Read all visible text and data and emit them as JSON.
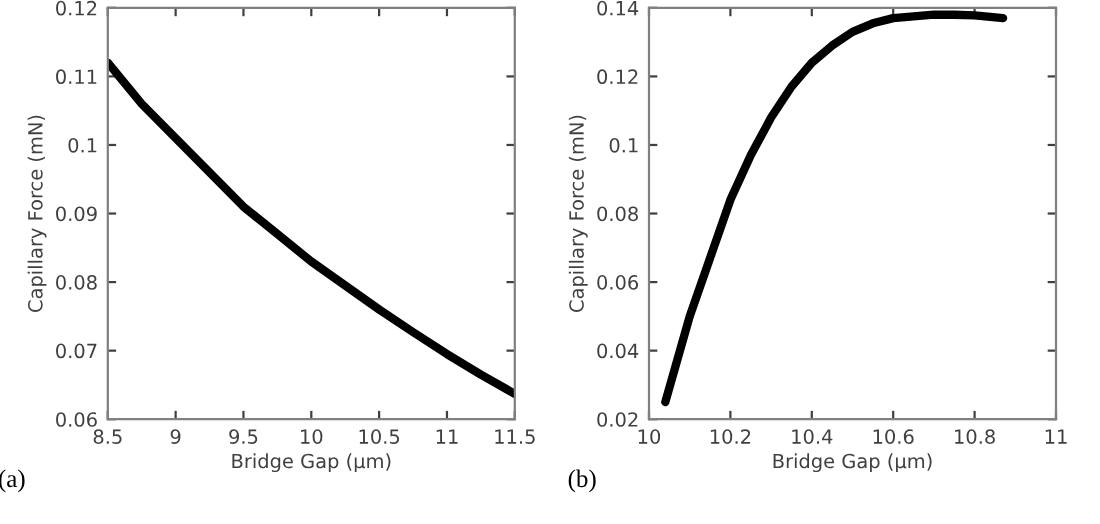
{
  "chart_data": [
    {
      "type": "line",
      "xlabel": "Bridge Gap (μm)",
      "ylabel": "Capillary Force (mN)",
      "annotations": [
        "(a)"
      ],
      "xlim": [
        8.5,
        11.5
      ],
      "xticks": [
        8.5,
        9,
        9.5,
        10,
        10.5,
        11,
        11.5
      ],
      "ylim": [
        0.06,
        0.12
      ],
      "yticks": [
        0.06,
        0.07,
        0.08,
        0.09,
        0.1,
        0.11,
        0.12
      ],
      "grid": false,
      "legend": false,
      "series": [
        {
          "color": "#000000",
          "x": [
            8.5,
            8.75,
            9,
            9.25,
            9.5,
            9.75,
            10,
            10.25,
            10.5,
            10.75,
            11,
            11.25,
            11.5
          ],
          "values": [
            0.112,
            0.106,
            0.101,
            0.096,
            0.091,
            0.087,
            0.083,
            0.0795,
            0.076,
            0.0727,
            0.0695,
            0.0665,
            0.0637
          ]
        }
      ]
    },
    {
      "type": "line",
      "xlabel": "Bridge Gap (μm)",
      "ylabel": "Capillary Force (mN)",
      "annotations": [
        "(b)"
      ],
      "xlim": [
        10,
        11
      ],
      "xticks": [
        10,
        10.2,
        10.4,
        10.6,
        10.8,
        11
      ],
      "ylim": [
        0.02,
        0.14
      ],
      "yticks": [
        0.02,
        0.04,
        0.06,
        0.08,
        0.1,
        0.12,
        0.14
      ],
      "grid": false,
      "legend": false,
      "series": [
        {
          "color": "#000000",
          "x": [
            10.04,
            10.1,
            10.15,
            10.2,
            10.25,
            10.3,
            10.35,
            10.4,
            10.45,
            10.5,
            10.55,
            10.6,
            10.65,
            10.7,
            10.75,
            10.8,
            10.87
          ],
          "values": [
            0.025,
            0.05,
            0.067,
            0.084,
            0.097,
            0.108,
            0.117,
            0.124,
            0.129,
            0.133,
            0.1355,
            0.137,
            0.1375,
            0.138,
            0.138,
            0.1378,
            0.137
          ]
        }
      ]
    }
  ]
}
